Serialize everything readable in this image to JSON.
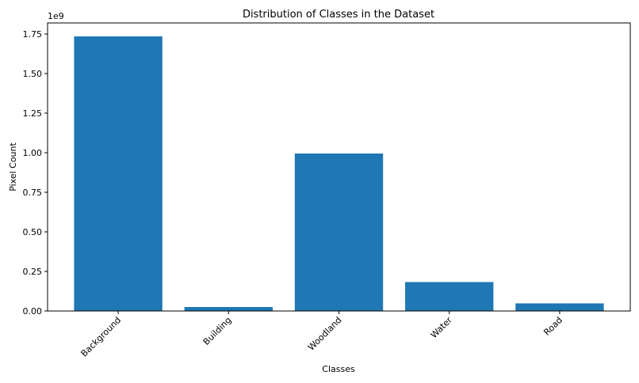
{
  "chart_data": {
    "type": "bar",
    "title": "Distribution of Classes in the Dataset",
    "x_label": "Classes",
    "y_label": "Pixel Count",
    "y_offset_label": "1e9",
    "categories": [
      "Background",
      "Building",
      "Woodland",
      "Water",
      "Road"
    ],
    "values": [
      1.735,
      0.025,
      0.995,
      0.183,
      0.048
    ],
    "color": "#1f77b4",
    "ylim": [
      0,
      1.82
    ],
    "yticks": [
      {
        "value": 0,
        "label": "0.00"
      },
      0.25,
      {
        "value": 0.5,
        "label": "0.50"
      },
      0.75,
      {
        "value": 1,
        "label": "1.00"
      },
      1.25,
      {
        "value": 1.5,
        "label": "1.50"
      },
      1.75
    ],
    "grid": false
  }
}
